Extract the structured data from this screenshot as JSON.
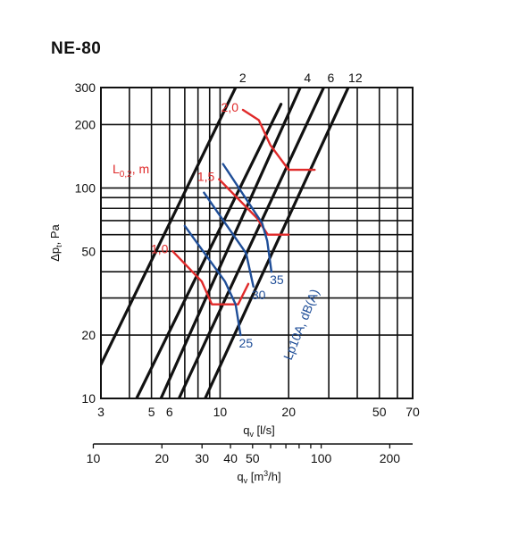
{
  "title": "NE-80",
  "chart_data": {
    "type": "line",
    "title": "NE-80",
    "x_axis": {
      "label": "q",
      "label_sub": "v",
      "label_unit": "[l/s]",
      "scale": "log",
      "range": [
        3,
        70
      ],
      "tick_labels": [
        {
          "v": 3,
          "t": "3"
        },
        {
          "v": 5,
          "t": "5"
        },
        {
          "v": 6,
          "t": "6"
        },
        {
          "v": 10,
          "t": "10"
        },
        {
          "v": 20,
          "t": "20"
        },
        {
          "v": 50,
          "t": "50"
        },
        {
          "v": 70,
          "t": "70"
        }
      ]
    },
    "x_axis_secondary": {
      "label": "q",
      "label_sub": "v",
      "label_unit_pre": "[m",
      "label_sup": "3",
      "label_unit_post": "/h]",
      "scale": "log",
      "tick_labels": [
        {
          "v": 10,
          "t": "10"
        },
        {
          "v": 20,
          "t": "20"
        },
        {
          "v": 30,
          "t": "30"
        },
        {
          "v": 40,
          "t": "40"
        },
        {
          "v": 50,
          "t": "50"
        },
        {
          "v": 100,
          "t": "100"
        },
        {
          "v": 200,
          "t": "200"
        }
      ]
    },
    "y_axis": {
      "label": "Δp",
      "label_sub": "t",
      "label_unit": ", Pa",
      "scale": "log",
      "range": [
        10,
        300
      ],
      "tick_labels": [
        {
          "v": 10,
          "t": "10"
        },
        {
          "v": 20,
          "t": "20"
        },
        {
          "v": 50,
          "t": "50"
        },
        {
          "v": 100,
          "t": "100"
        },
        {
          "v": 200,
          "t": "200"
        },
        {
          "v": 300,
          "t": "300"
        }
      ]
    },
    "grid": true,
    "series": [
      {
        "name": "2",
        "group": "opening",
        "color": "#111111",
        "points": [
          [
            3,
            14.5
          ],
          [
            11.7,
            300
          ]
        ]
      },
      {
        "name": "",
        "group": "opening",
        "color": "#111111",
        "points": [
          [
            4.3,
            10
          ],
          [
            18.5,
            250
          ]
        ]
      },
      {
        "name": "4",
        "group": "opening",
        "color": "#111111",
        "points": [
          [
            5.5,
            10
          ],
          [
            22.5,
            300
          ]
        ]
      },
      {
        "name": "6",
        "group": "opening",
        "color": "#111111",
        "points": [
          [
            6.6,
            10
          ],
          [
            28.5,
            300
          ]
        ]
      },
      {
        "name": "12",
        "group": "opening",
        "color": "#111111",
        "points": [
          [
            8.6,
            10
          ],
          [
            36.5,
            300
          ]
        ]
      },
      {
        "name": "1,0",
        "group": "L0,2",
        "color": "#e02a2a",
        "points": [
          [
            6.2,
            50
          ],
          [
            8.3,
            36
          ],
          [
            9.2,
            28
          ],
          [
            12.0,
            28
          ],
          [
            13.3,
            35
          ]
        ]
      },
      {
        "name": "1,5",
        "group": "L0,2",
        "color": "#e02a2a",
        "points": [
          [
            9.9,
            110
          ],
          [
            14.5,
            72
          ],
          [
            16.2,
            60
          ],
          [
            20.0,
            60
          ]
        ]
      },
      {
        "name": "2,0",
        "group": "L0,2",
        "color": "#e02a2a",
        "points": [
          [
            12.6,
            235
          ],
          [
            14.8,
            210
          ],
          [
            16.6,
            160
          ],
          [
            20.0,
            122
          ],
          [
            26.0,
            122
          ]
        ]
      },
      {
        "name": "25",
        "group": "Lp10A, dB(A)",
        "color": "#1f4e98",
        "points": [
          [
            7.0,
            66
          ],
          [
            10.5,
            36
          ],
          [
            11.7,
            28
          ],
          [
            12.3,
            20
          ]
        ]
      },
      {
        "name": "30",
        "group": "Lp10A, dB(A)",
        "color": "#1f4e98",
        "points": [
          [
            8.5,
            95
          ],
          [
            13.0,
            49
          ],
          [
            14.0,
            34
          ]
        ]
      },
      {
        "name": "35",
        "group": "Lp10A, dB(A)",
        "color": "#1f4e98",
        "points": [
          [
            10.3,
            130
          ],
          [
            15.3,
            68
          ],
          [
            16.1,
            56
          ],
          [
            16.8,
            40
          ]
        ]
      }
    ],
    "legend_labels": {
      "red_group": "L",
      "red_group_sub": "0,2",
      "red_group_unit": ", m",
      "blue_group": "Lp10A, dB(A)"
    }
  }
}
